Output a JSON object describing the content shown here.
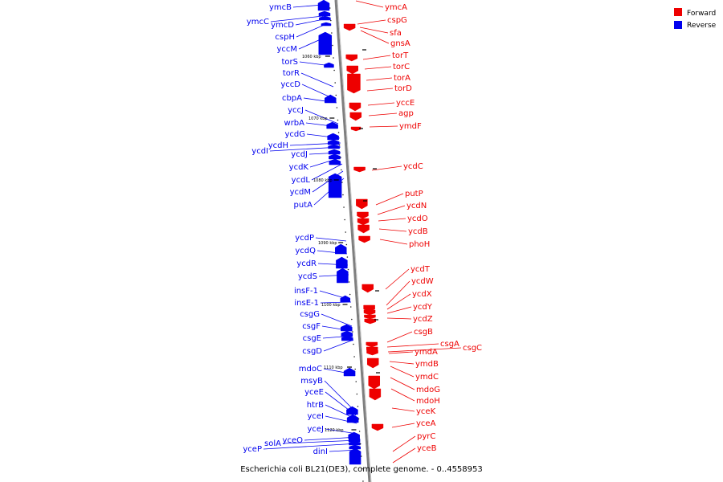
{
  "caption": "Escherichia coli BL21(DE3), complete genome. - 0..4558953",
  "legend": [
    {
      "label": "Forward",
      "color": "#ee0000"
    },
    {
      "label": "Reverse",
      "color": "#0000ee"
    }
  ],
  "colors": {
    "forward": "#ee0000",
    "reverse": "#0000ee",
    "backbone": "#7f7f7f"
  },
  "scale_marks": [
    "1060 kbp",
    "1070 kbp",
    "1080 kbp",
    "1090 kbp",
    "1100 kbp",
    "1110 kbp",
    "1120 kbp"
  ],
  "reverse_genes": [
    "ymcB",
    "ymcC",
    "ymcD",
    "cspH",
    "yccM",
    "torS",
    "torR",
    "yccD",
    "cbpA",
    "yccJ",
    "wrbA",
    "ycdG",
    "ycdH",
    "ycdI",
    "ycdJ",
    "ycdK",
    "ycdL",
    "ycdM",
    "putA",
    "ycdP",
    "ycdQ",
    "ycdR",
    "ycdS",
    "insF-1",
    "insE-1",
    "csgG",
    "csgF",
    "csgE",
    "csgD",
    "mdoC",
    "msyB",
    "yceE",
    "htrB",
    "yceI",
    "yceJ",
    "yceO",
    "solA",
    "yceP",
    "dinI"
  ],
  "forward_genes": [
    "ymcA",
    "cspG",
    "sfa",
    "gnsA",
    "torT",
    "torC",
    "torA",
    "torD",
    "yccE",
    "agp",
    "ymdF",
    "ycdC",
    "putP",
    "ycdN",
    "ycdO",
    "ycdB",
    "phoH",
    "ycdT",
    "ycdW",
    "ycdX",
    "ycdY",
    "ycdZ",
    "csgB",
    "csgA",
    "csgC",
    "ymdA",
    "ymdB",
    "ymdC",
    "mdoG",
    "mdoH",
    "yceK",
    "yceA",
    "pyrC",
    "yceB"
  ]
}
